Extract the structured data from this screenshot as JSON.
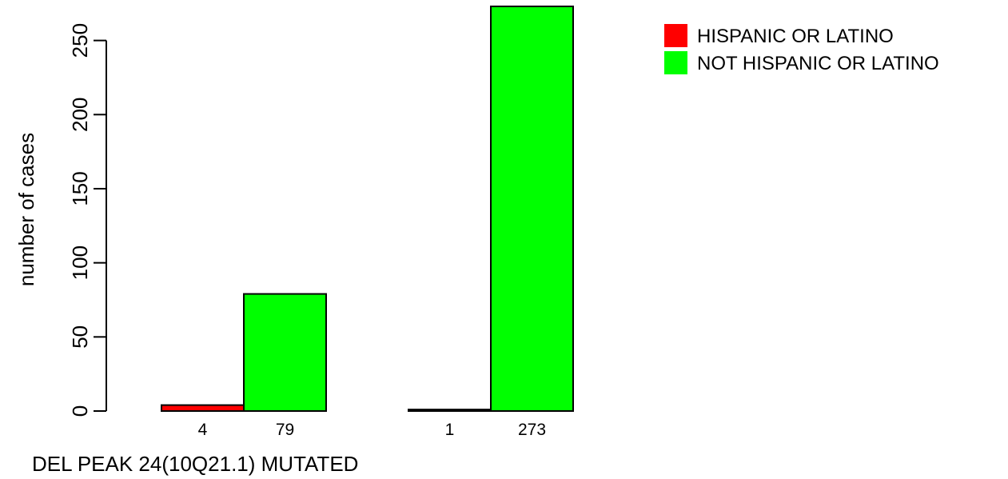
{
  "chart_data": {
    "type": "bar",
    "xlabel": "DEL PEAK 24(10Q21.1) MUTATED",
    "ylabel": "number of cases",
    "ylim": [
      0,
      273
    ],
    "yticks": [
      0,
      50,
      100,
      150,
      200,
      250
    ],
    "groups": [
      {
        "bars": [
          {
            "series": "HISPANIC OR LATINO",
            "value": 4,
            "label": "4"
          },
          {
            "series": "NOT HISPANIC OR LATINO",
            "value": 79,
            "label": "79"
          }
        ]
      },
      {
        "bars": [
          {
            "series": "HISPANIC OR LATINO",
            "value": 1,
            "label": "1"
          },
          {
            "series": "NOT HISPANIC OR LATINO",
            "value": 273,
            "label": "273"
          }
        ]
      }
    ],
    "series": [
      {
        "name": "HISPANIC OR LATINO",
        "color": "#ff0000",
        "values": [
          4,
          1
        ]
      },
      {
        "name": "NOT HISPANIC OR LATINO",
        "color": "#00ff00",
        "values": [
          79,
          273
        ]
      }
    ],
    "legend": {
      "position": "top-right"
    },
    "grid": false
  }
}
